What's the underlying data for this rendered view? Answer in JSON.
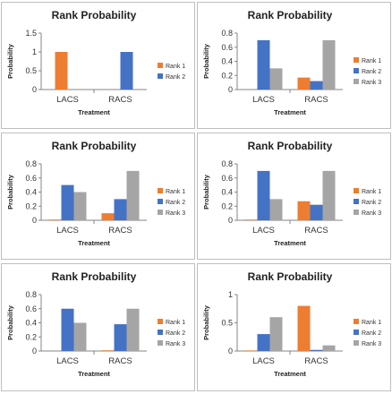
{
  "colors": {
    "Rank 1": "#ED7D31",
    "Rank 2": "#4472C4",
    "Rank 3": "#A5A5A5"
  },
  "chart_data": [
    {
      "type": "bar",
      "title": "Rank Probability",
      "xlabel": "Treatment",
      "ylabel": "Probability",
      "categories": [
        "LACS",
        "RACS"
      ],
      "ylim": [
        0,
        1.5
      ],
      "yticks": [
        0,
        0.5,
        1,
        1.5
      ],
      "ytick_labels": [
        "0",
        "0.5",
        "1",
        "1.5"
      ],
      "grid": false,
      "legend_position": "right",
      "series": [
        {
          "name": "Rank 1",
          "values": [
            1,
            0
          ]
        },
        {
          "name": "Rank 2",
          "values": [
            0,
            1
          ]
        }
      ]
    },
    {
      "type": "bar",
      "title": "Rank Probability",
      "xlabel": "Treatment",
      "ylabel": "Probability",
      "categories": [
        "LACS",
        "RACS"
      ],
      "ylim": [
        0,
        0.8
      ],
      "yticks": [
        0,
        0.2,
        0.4,
        0.6,
        0.8
      ],
      "ytick_labels": [
        "0",
        "0.2",
        "0.4",
        "0.6",
        "0.8"
      ],
      "grid": false,
      "legend_position": "right",
      "series": [
        {
          "name": "Rank 1",
          "values": [
            0.0,
            0.17
          ]
        },
        {
          "name": "Rank 2",
          "values": [
            0.7,
            0.12
          ]
        },
        {
          "name": "Rank 3",
          "values": [
            0.3,
            0.7
          ]
        }
      ]
    },
    {
      "type": "bar",
      "title": "Rank Probability",
      "xlabel": "Treatment",
      "ylabel": "Probability",
      "categories": [
        "LACS",
        "RACS"
      ],
      "ylim": [
        0,
        0.8
      ],
      "yticks": [
        0,
        0.2,
        0.4,
        0.6,
        0.8
      ],
      "ytick_labels": [
        "0",
        "0.2",
        "0.4",
        "0.6",
        "0.8"
      ],
      "grid": false,
      "legend_position": "right",
      "series": [
        {
          "name": "Rank 1",
          "values": [
            0.01,
            0.1
          ]
        },
        {
          "name": "Rank 2",
          "values": [
            0.5,
            0.3
          ]
        },
        {
          "name": "Rank 3",
          "values": [
            0.4,
            0.7
          ]
        }
      ]
    },
    {
      "type": "bar",
      "title": "Rank Probability",
      "xlabel": "Treatment",
      "ylabel": "Probability",
      "categories": [
        "LACS",
        "RACS"
      ],
      "ylim": [
        0,
        0.8
      ],
      "yticks": [
        0,
        0.2,
        0.4,
        0.6,
        0.8
      ],
      "ytick_labels": [
        "0",
        "0.2",
        "0.4",
        "0.6",
        "0.8"
      ],
      "grid": false,
      "legend_position": "right",
      "series": [
        {
          "name": "Rank 1",
          "values": [
            0.01,
            0.27
          ]
        },
        {
          "name": "Rank 2",
          "values": [
            0.7,
            0.22
          ]
        },
        {
          "name": "Rank 3",
          "values": [
            0.3,
            0.7
          ]
        }
      ]
    },
    {
      "type": "bar",
      "title": "Rank Probability",
      "xlabel": "Treatment",
      "ylabel": "Probability",
      "categories": [
        "LACS",
        "RACS"
      ],
      "ylim": [
        0,
        0.8
      ],
      "yticks": [
        0,
        0.2,
        0.4,
        0.6,
        0.8
      ],
      "ytick_labels": [
        "0",
        "0.2",
        "0.4",
        "0.6",
        "0.8"
      ],
      "grid": false,
      "legend_position": "right",
      "series": [
        {
          "name": "Rank 1",
          "values": [
            0.0,
            0.01
          ]
        },
        {
          "name": "Rank 2",
          "values": [
            0.6,
            0.38
          ]
        },
        {
          "name": "Rank 3",
          "values": [
            0.4,
            0.6
          ]
        }
      ]
    },
    {
      "type": "bar",
      "title": "Rank Probability",
      "xlabel": "Treatment",
      "ylabel": "Probability",
      "categories": [
        "LACS",
        "RACS"
      ],
      "ylim": [
        0,
        1
      ],
      "yticks": [
        0,
        0.5,
        1
      ],
      "ytick_labels": [
        "0",
        "0.5",
        "1"
      ],
      "grid": false,
      "legend_position": "right",
      "series": [
        {
          "name": "Rank 1",
          "values": [
            0.01,
            0.8
          ]
        },
        {
          "name": "Rank 2",
          "values": [
            0.3,
            0.02
          ]
        },
        {
          "name": "Rank 3",
          "values": [
            0.6,
            0.1
          ]
        }
      ]
    }
  ]
}
